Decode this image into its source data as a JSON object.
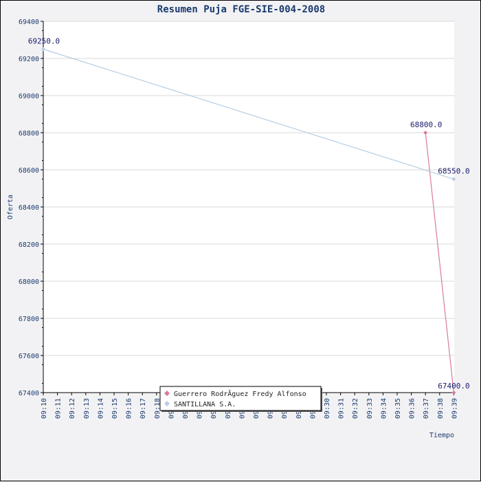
{
  "chart_data": {
    "type": "line",
    "title": "Resumen Puja FGE-SIE-004-2008",
    "xlabel": "Tiempo",
    "ylabel": "Oferta",
    "ylim": [
      67400,
      69400
    ],
    "y_ticks": [
      67400,
      67600,
      67800,
      68000,
      68200,
      68400,
      68600,
      68800,
      69000,
      69200,
      69400
    ],
    "x_ticks": [
      "09:10",
      "09:11",
      "09:12",
      "09:13",
      "09:14",
      "09:15",
      "09:16",
      "09:17",
      "09:18",
      "09:19",
      "09:20",
      "09:21",
      "09:22",
      "09:23",
      "09:24",
      "09:25",
      "09:26",
      "09:27",
      "09:28",
      "09:29",
      "09:30",
      "09:31",
      "09:32",
      "09:33",
      "09:34",
      "09:35",
      "09:36",
      "09:37",
      "09:38",
      "09:39"
    ],
    "grid": true,
    "legend_position": "bottom-center",
    "series": [
      {
        "name": "Guerrero RodrÃ­guez Fredy Alfonso",
        "color": "#d87a98",
        "points": [
          {
            "x": "09:37",
            "y": 68800,
            "label": "68800.0"
          },
          {
            "x": "09:39",
            "y": 67400,
            "label": "67400.0"
          }
        ]
      },
      {
        "name": "SANTILLANA S.A.",
        "color": "#b6cde3",
        "points": [
          {
            "x": "09:10",
            "y": 69250,
            "label": "69250.0"
          },
          {
            "x": "09:39",
            "y": 68550,
            "label": "68550.0"
          }
        ]
      }
    ]
  }
}
